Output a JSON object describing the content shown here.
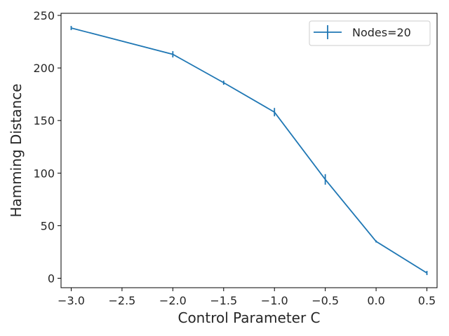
{
  "chart_data": {
    "type": "line",
    "xlabel": "Control Parameter C",
    "ylabel": "Hamming Distance",
    "xlim": [
      -3.1,
      0.6
    ],
    "ylim": [
      -9,
      252
    ],
    "xticks": [
      -3.0,
      -2.5,
      -2.0,
      -1.5,
      -1.0,
      -0.5,
      0.0,
      0.5
    ],
    "xtick_labels": [
      "−3.0",
      "−2.5",
      "−2.0",
      "−1.5",
      "−1.0",
      "−0.5",
      "0.0",
      "0.5"
    ],
    "yticks": [
      0,
      50,
      100,
      150,
      200,
      250
    ],
    "ytick_labels": [
      "0",
      "50",
      "100",
      "150",
      "200",
      "250"
    ],
    "grid": false,
    "legend_position": "top-right",
    "series": [
      {
        "name": "Nodes=20",
        "color": "#1f77b4",
        "x": [
          -3.0,
          -2.0,
          -1.5,
          -1.0,
          -0.5,
          0.0,
          0.5
        ],
        "y": [
          238,
          213,
          186,
          158,
          94,
          35,
          5
        ],
        "yerr": [
          2,
          3,
          2,
          4,
          5,
          1,
          2
        ]
      }
    ]
  }
}
